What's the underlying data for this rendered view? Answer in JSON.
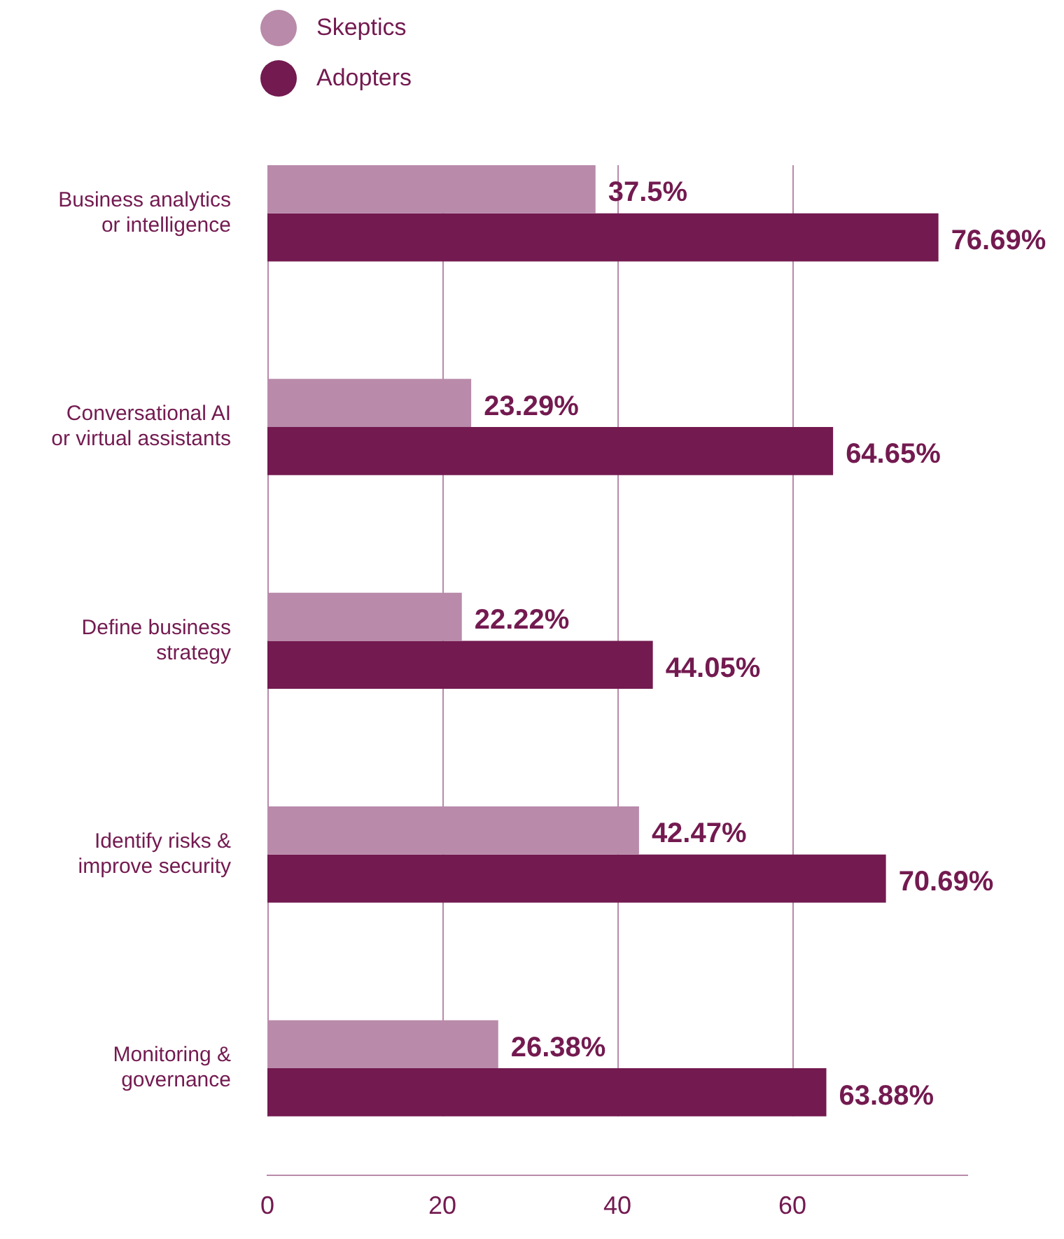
{
  "chart_data": {
    "type": "bar",
    "orientation": "horizontal",
    "categories": [
      "Business analytics\nor intelligence",
      "Conversational AI\nor virtual assistants",
      "Define business\nstrategy",
      "Identify risks &\nimprove security",
      "Monitoring &\ngovernance"
    ],
    "series": [
      {
        "name": "Skeptics",
        "color": "#b98aaa",
        "values": [
          37.5,
          23.29,
          22.22,
          42.47,
          26.38
        ],
        "value_labels": [
          "37.5%",
          "23.29%",
          "22.22%",
          "42.47%",
          "26.38%"
        ]
      },
      {
        "name": "Adopters",
        "color": "#731a50",
        "values": [
          76.69,
          64.65,
          44.05,
          70.69,
          63.88
        ],
        "value_labels": [
          "76.69%",
          "64.65%",
          "44.05%",
          "70.69%",
          "63.88%"
        ]
      }
    ],
    "xlim": [
      0,
      80
    ],
    "xticks": [
      0,
      20,
      40,
      60
    ],
    "grid": "x",
    "legend": "top left"
  }
}
